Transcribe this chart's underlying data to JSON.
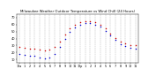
{
  "title": "Milwaukee Weather Outdoor Temperature vs Wind Chill (24 Hours)",
  "title_fontsize": 2.8,
  "hours": [
    0,
    1,
    2,
    3,
    4,
    5,
    6,
    7,
    8,
    9,
    10,
    11,
    12,
    13,
    14,
    15,
    16,
    17,
    18,
    19,
    20,
    21,
    22,
    23
  ],
  "x_labels": [
    "12a",
    "1",
    "2",
    "3",
    "4",
    "5",
    "6",
    "7",
    "8",
    "9",
    "10",
    "11",
    "12p",
    "1",
    "2",
    "3",
    "4",
    "5",
    "6",
    "7",
    "8",
    "9",
    "10",
    "11"
  ],
  "temp": [
    28,
    27,
    26,
    25,
    24,
    23,
    24,
    28,
    36,
    46,
    54,
    60,
    63,
    65,
    65,
    63,
    60,
    54,
    47,
    41,
    36,
    33,
    31,
    30
  ],
  "wind_chill": [
    18,
    17,
    16,
    15,
    13,
    12,
    13,
    18,
    28,
    40,
    49,
    56,
    60,
    62,
    62,
    60,
    57,
    51,
    44,
    38,
    32,
    29,
    27,
    25
  ],
  "temp_color": "#cc0000",
  "wind_color": "#0000cc",
  "bg_color": "#ffffff",
  "grid_color": "#aaaaaa",
  "ylim": [
    5,
    75
  ],
  "ytick_vals": [
    10,
    20,
    30,
    40,
    50,
    60,
    70
  ],
  "ytick_labels": [
    "10",
    "20",
    "30",
    "40",
    "50",
    "60",
    "70"
  ],
  "ylabel_fontsize": 2.5,
  "xlabel_fontsize": 2.4,
  "dot_size": 1.2,
  "grid_linewidth": 0.3,
  "spine_linewidth": 0.3
}
